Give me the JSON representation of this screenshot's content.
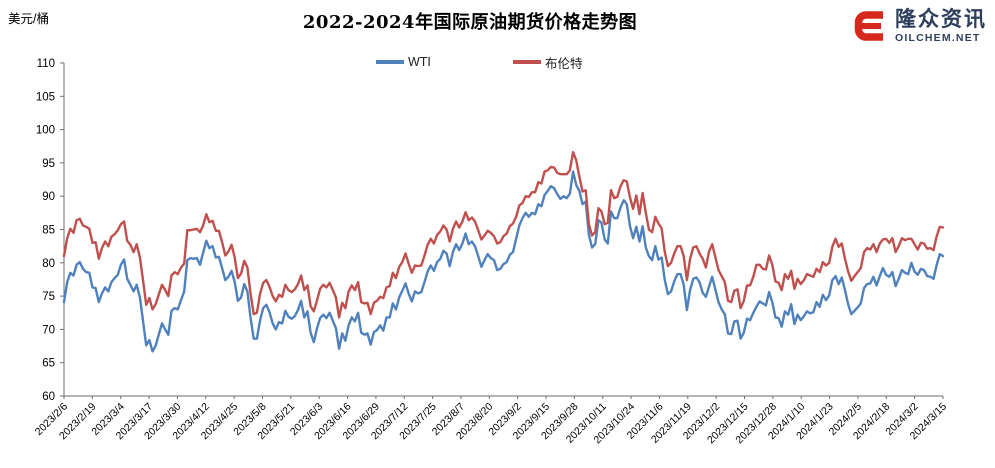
{
  "header": {
    "title": "2022-2024年国际原油期货价格走势图"
  },
  "logo": {
    "name": "隆众资讯",
    "site": "OILCHEM.NET",
    "icon_color": "#d7281e",
    "text_color": "#2e3f5c"
  },
  "axis_colors": {
    "axis_line": "#6e6e6e",
    "tick_label": "#000000"
  },
  "chart_data": {
    "type": "line",
    "title": "2022-2024年国际原油期货价格走势图",
    "ylabel": "美元/桶",
    "xlabel": "",
    "ylim": [
      60,
      110
    ],
    "ytick_step": 5,
    "grid": false,
    "legend_position": "top-center",
    "x_tick_labels": [
      "2023/2/6",
      "2023/2/19",
      "2023/3/4",
      "2023/3/17",
      "2023/3/30",
      "2023/4/12",
      "2023/4/25",
      "2023/5/8",
      "2023/5/21",
      "2023/6/3",
      "2023/6/16",
      "2023/6/29",
      "2023/7/12",
      "2023/7/25",
      "2023/8/7",
      "2023/8/20",
      "2023/9/2",
      "2023/9/15",
      "2023/9/28",
      "2023/10/11",
      "2023/10/24",
      "2023/11/6",
      "2023/11/19",
      "2023/12/2",
      "2023/12/15",
      "2023/12/28",
      "2024/1/10",
      "2024/1/23",
      "2024/2/5",
      "2024/2/18",
      "2024/3/2",
      "2024/3/15"
    ],
    "series": [
      {
        "name": "WTI",
        "color": "#4f81bd",
        "values": [
          74.1,
          77.1,
          78.5,
          78.1,
          79.7,
          80.1,
          79.1,
          78.6,
          78.5,
          76.3,
          76.2,
          74.1,
          75.4,
          76.3,
          75.7,
          77.1,
          77.7,
          78.2,
          79.7,
          80.5,
          77.6,
          76.7,
          75.7,
          76.7,
          74.8,
          71.3,
          67.6,
          68.4,
          66.7,
          67.6,
          69.3,
          70.9,
          70.0,
          69.2,
          72.8,
          73.2,
          73.0,
          74.4,
          75.7,
          80.4,
          80.7,
          80.6,
          80.7,
          79.7,
          81.5,
          83.3,
          82.2,
          82.5,
          80.8,
          80.9,
          79.2,
          77.4,
          77.9,
          78.8,
          77.1,
          74.3,
          74.8,
          76.8,
          75.7,
          71.7,
          68.6,
          68.6,
          71.3,
          73.2,
          73.7,
          72.6,
          70.9,
          70.0,
          71.1,
          70.9,
          72.8,
          71.9,
          71.6,
          72.0,
          72.9,
          74.3,
          71.8,
          72.7,
          69.5,
          68.1,
          70.1,
          71.7,
          72.2,
          71.7,
          72.5,
          71.3,
          70.2,
          67.1,
          69.4,
          68.3,
          70.6,
          71.8,
          71.2,
          72.5,
          69.5,
          69.2,
          69.4,
          67.7,
          69.6,
          69.9,
          70.6,
          69.8,
          71.8,
          71.8,
          73.9,
          73.0,
          74.8,
          75.8,
          76.9,
          75.4,
          74.2,
          75.7,
          75.4,
          75.6,
          77.1,
          78.7,
          79.6,
          78.8,
          80.1,
          80.6,
          81.8,
          81.4,
          79.5,
          81.6,
          82.8,
          81.9,
          82.9,
          84.4,
          82.8,
          83.2,
          82.5,
          81.0,
          79.4,
          80.4,
          81.3,
          80.7,
          80.4,
          78.9,
          79.1,
          79.8,
          80.1,
          81.2,
          81.6,
          83.6,
          85.6,
          86.7,
          87.5,
          86.9,
          87.5,
          87.3,
          88.8,
          88.5,
          90.2,
          90.8,
          91.5,
          91.2,
          90.3,
          89.6,
          90.0,
          89.7,
          90.4,
          93.7,
          91.7,
          90.8,
          88.8,
          89.2,
          84.2,
          82.3,
          82.8,
          86.4,
          86.0,
          83.5,
          82.9,
          87.7,
          86.7,
          86.7,
          88.3,
          89.4,
          88.8,
          85.5,
          83.7,
          85.4,
          83.2,
          85.5,
          82.3,
          81.0,
          80.4,
          82.5,
          80.5,
          80.8,
          77.4,
          75.3,
          75.7,
          77.2,
          78.3,
          78.3,
          76.7,
          72.9,
          75.9,
          77.6,
          77.8,
          77.1,
          75.5,
          74.9,
          76.4,
          77.9,
          76.0,
          74.1,
          73.0,
          72.3,
          69.4,
          69.3,
          71.2,
          71.3,
          68.6,
          69.5,
          71.6,
          71.4,
          72.5,
          73.4,
          74.2,
          73.9,
          73.6,
          75.6,
          74.1,
          71.8,
          71.7,
          70.4,
          72.7,
          72.2,
          73.8,
          70.8,
          72.2,
          71.4,
          72.0,
          72.7,
          72.4,
          72.6,
          74.1,
          73.4,
          75.2,
          74.4,
          75.1,
          77.4,
          78.0,
          76.8,
          77.8,
          75.9,
          73.8,
          72.3,
          72.8,
          73.3,
          73.9,
          76.2,
          76.8,
          76.9,
          77.9,
          76.6,
          78.0,
          79.2,
          78.2,
          77.9,
          78.6,
          76.5,
          77.6,
          78.9,
          78.5,
          78.3,
          80.0,
          78.7,
          78.2,
          79.1,
          78.9,
          78.0,
          77.9,
          77.6,
          79.7,
          81.3,
          81.0
        ]
      },
      {
        "name": "布伦特",
        "color": "#c0504d",
        "values": [
          81.0,
          83.7,
          85.1,
          84.5,
          86.4,
          86.6,
          85.6,
          85.4,
          85.1,
          83.0,
          83.1,
          80.6,
          82.2,
          83.2,
          82.5,
          83.9,
          84.3,
          84.9,
          85.8,
          86.2,
          83.3,
          82.7,
          81.6,
          82.8,
          80.8,
          77.4,
          73.7,
          74.7,
          73.0,
          73.8,
          75.3,
          76.7,
          75.9,
          75.0,
          78.1,
          78.6,
          78.3,
          79.3,
          79.9,
          84.9,
          84.9,
          85.0,
          85.1,
          84.6,
          85.6,
          87.3,
          86.1,
          86.3,
          84.8,
          84.8,
          83.1,
          81.1,
          81.7,
          82.7,
          80.8,
          77.7,
          78.4,
          80.3,
          79.3,
          75.3,
          72.3,
          72.5,
          75.3,
          77.0,
          77.4,
          76.4,
          75.0,
          74.2,
          75.2,
          74.9,
          76.7,
          75.9,
          75.6,
          76.0,
          76.8,
          78.1,
          75.9,
          76.6,
          73.5,
          72.7,
          74.3,
          76.1,
          76.7,
          76.3,
          77.0,
          75.9,
          74.8,
          71.8,
          74.0,
          73.2,
          75.7,
          76.6,
          75.9,
          77.1,
          74.1,
          73.9,
          74.0,
          72.3,
          74.0,
          74.3,
          74.9,
          74.7,
          76.3,
          76.5,
          78.5,
          77.7,
          79.4,
          80.1,
          81.4,
          79.9,
          78.5,
          79.6,
          79.5,
          79.6,
          81.1,
          82.7,
          83.6,
          82.9,
          84.2,
          84.7,
          85.6,
          85.0,
          83.2,
          85.1,
          86.2,
          85.3,
          86.2,
          87.6,
          86.4,
          86.8,
          86.2,
          84.9,
          83.5,
          84.1,
          84.8,
          84.5,
          84.0,
          82.9,
          83.1,
          84.0,
          84.4,
          85.5,
          85.9,
          86.9,
          88.6,
          89.0,
          90.0,
          89.9,
          90.6,
          90.6,
          92.1,
          91.9,
          93.7,
          93.9,
          94.4,
          94.3,
          93.5,
          93.3,
          93.3,
          93.3,
          93.9,
          96.6,
          95.4,
          92.9,
          90.7,
          90.9,
          85.8,
          84.1,
          84.6,
          88.2,
          87.7,
          85.8,
          86.0,
          90.9,
          89.7,
          89.9,
          91.5,
          92.4,
          92.2,
          89.8,
          88.1,
          90.1,
          87.3,
          90.5,
          87.5,
          85.0,
          84.6,
          86.9,
          85.9,
          85.2,
          81.6,
          79.5,
          80.0,
          81.4,
          82.5,
          82.5,
          81.0,
          77.4,
          80.6,
          82.3,
          82.5,
          81.4,
          80.6,
          79.3,
          81.7,
          82.8,
          80.9,
          78.9,
          78.0,
          77.1,
          74.3,
          74.1,
          75.8,
          76.0,
          73.2,
          74.3,
          76.6,
          76.6,
          77.9,
          79.7,
          79.7,
          79.1,
          79.0,
          81.1,
          79.7,
          77.2,
          77.0,
          75.9,
          78.3,
          77.6,
          78.8,
          76.1,
          77.6,
          76.8,
          77.4,
          78.3,
          78.1,
          77.9,
          79.1,
          78.6,
          80.1,
          79.6,
          80.0,
          82.4,
          83.6,
          82.4,
          82.9,
          80.6,
          78.7,
          77.3,
          78.0,
          78.6,
          79.2,
          81.6,
          82.2,
          82.0,
          82.8,
          81.6,
          82.9,
          83.5,
          83.6,
          83.0,
          83.7,
          81.6,
          82.5,
          83.7,
          83.4,
          83.6,
          83.6,
          82.8,
          82.0,
          83.0,
          82.9,
          82.1,
          82.2,
          81.9,
          84.0,
          85.4,
          85.3
        ]
      }
    ]
  }
}
